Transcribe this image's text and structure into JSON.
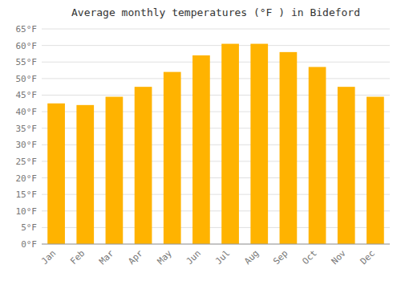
{
  "chart_data": {
    "type": "bar",
    "title": "Average monthly temperatures (°F ) in Bideford",
    "categories": [
      "Jan",
      "Feb",
      "Mar",
      "Apr",
      "May",
      "Jun",
      "Jul",
      "Aug",
      "Sep",
      "Oct",
      "Nov",
      "Dec"
    ],
    "values": [
      42.5,
      42.0,
      44.5,
      47.5,
      52.0,
      57.0,
      60.5,
      60.5,
      58.0,
      53.5,
      47.5,
      44.5
    ],
    "color": "#FFB300",
    "ylim": [
      0,
      65
    ],
    "yticks": [
      {
        "value": 0,
        "label": "0°F"
      },
      {
        "value": 5,
        "label": "5°F"
      },
      {
        "value": 10,
        "label": "10°F"
      },
      {
        "value": 15,
        "label": "15°F"
      },
      {
        "value": 20,
        "label": "20°F"
      },
      {
        "value": 25,
        "label": "25°F"
      },
      {
        "value": 30,
        "label": "30°F"
      },
      {
        "value": 35,
        "label": "35°F"
      },
      {
        "value": 40,
        "label": "40°F"
      },
      {
        "value": 45,
        "label": "45°F"
      },
      {
        "value": 50,
        "label": "50°F"
      },
      {
        "value": 55,
        "label": "55°F"
      },
      {
        "value": 60,
        "label": "60°F"
      },
      {
        "value": 65,
        "label": "65°F"
      }
    ],
    "grid": true
  }
}
